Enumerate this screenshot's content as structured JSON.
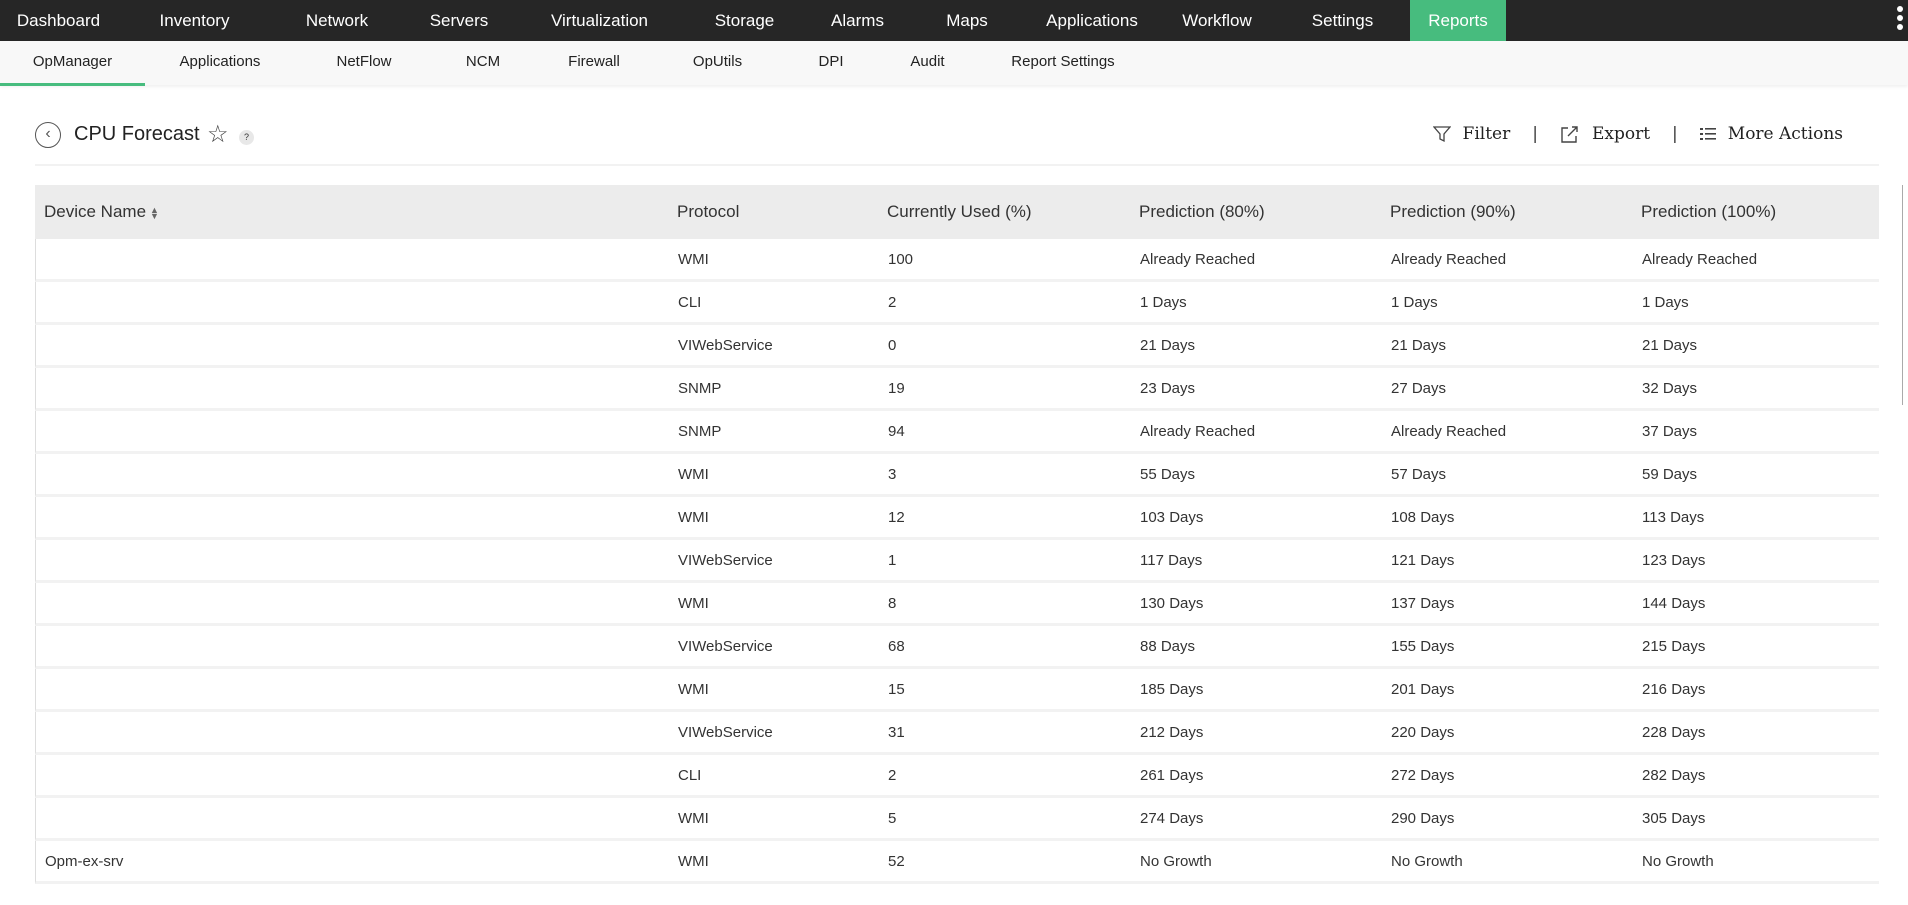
{
  "topnav": {
    "items": [
      "Dashboard",
      "Inventory",
      "Network",
      "Servers",
      "Virtualization",
      "Storage",
      "Alarms",
      "Maps",
      "Applications",
      "Workflow",
      "Settings",
      "Reports"
    ],
    "active": "Reports",
    "accent": "#47bc7e"
  },
  "subnav": {
    "items": [
      "OpManager",
      "Applications",
      "NetFlow",
      "NCM",
      "Firewall",
      "OpUtils",
      "DPI",
      "Audit",
      "Report Settings"
    ],
    "active": "OpManager"
  },
  "header": {
    "title": "CPU Forecast",
    "help": "?",
    "filter": "Filter",
    "export": "Export",
    "more_actions": "More Actions",
    "sep": "|"
  },
  "table": {
    "columns": [
      "Device Name",
      "Protocol",
      "Currently Used (%)",
      "Prediction (80%)",
      "Prediction (90%)",
      "Prediction (100%)"
    ],
    "sort_column": "Device Name",
    "rows": [
      [
        "",
        "WMI",
        "100",
        "Already Reached",
        "Already Reached",
        "Already Reached"
      ],
      [
        "",
        "CLI",
        "2",
        "1 Days",
        "1 Days",
        "1 Days"
      ],
      [
        "",
        "VIWebService",
        "0",
        "21 Days",
        "21 Days",
        "21 Days"
      ],
      [
        "",
        "SNMP",
        "19",
        "23 Days",
        "27 Days",
        "32 Days"
      ],
      [
        "",
        "SNMP",
        "94",
        "Already Reached",
        "Already Reached",
        "37 Days"
      ],
      [
        "",
        "WMI",
        "3",
        "55 Days",
        "57 Days",
        "59 Days"
      ],
      [
        "",
        "WMI",
        "12",
        "103 Days",
        "108 Days",
        "113 Days"
      ],
      [
        "",
        "VIWebService",
        "1",
        "117 Days",
        "121 Days",
        "123 Days"
      ],
      [
        "",
        "WMI",
        "8",
        "130 Days",
        "137 Days",
        "144 Days"
      ],
      [
        "",
        "VIWebService",
        "68",
        "88 Days",
        "155 Days",
        "215 Days"
      ],
      [
        "",
        "WMI",
        "15",
        "185 Days",
        "201 Days",
        "216 Days"
      ],
      [
        "",
        "VIWebService",
        "31",
        "212 Days",
        "220 Days",
        "228 Days"
      ],
      [
        "",
        "CLI",
        "2",
        "261 Days",
        "272 Days",
        "282 Days"
      ],
      [
        "",
        "WMI",
        "5",
        "274 Days",
        "290 Days",
        "305 Days"
      ],
      [
        "Opm-ex-srv",
        "WMI",
        "52",
        "No Growth",
        "No Growth",
        "No Growth"
      ]
    ]
  }
}
